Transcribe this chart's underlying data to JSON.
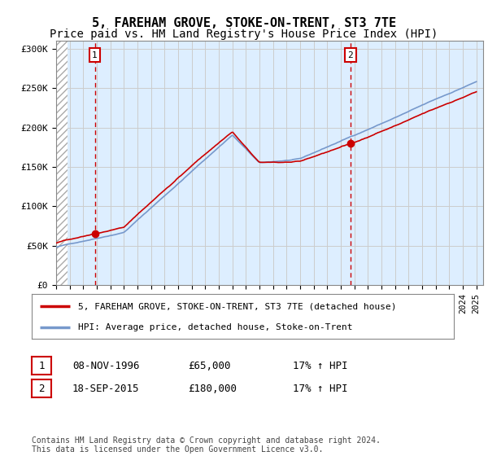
{
  "title": "5, FAREHAM GROVE, STOKE-ON-TRENT, ST3 7TE",
  "subtitle": "Price paid vs. HM Land Registry's House Price Index (HPI)",
  "ylim": [
    0,
    310000
  ],
  "yticks": [
    0,
    50000,
    100000,
    150000,
    200000,
    250000,
    300000
  ],
  "ytick_labels": [
    "£0",
    "£50K",
    "£100K",
    "£150K",
    "£200K",
    "£250K",
    "£300K"
  ],
  "transaction1_year": 1996.85,
  "transaction1_price": 65000,
  "transaction2_year": 2015.72,
  "transaction2_price": 180000,
  "red_line_color": "#cc0000",
  "blue_line_color": "#7799cc",
  "grid_color": "#cccccc",
  "bg_color": "#ddeeff",
  "legend_line1": "5, FAREHAM GROVE, STOKE-ON-TRENT, ST3 7TE (detached house)",
  "legend_line2": "HPI: Average price, detached house, Stoke-on-Trent",
  "table_row1": [
    "1",
    "08-NOV-1996",
    "£65,000",
    "17% ↑ HPI"
  ],
  "table_row2": [
    "2",
    "18-SEP-2015",
    "£180,000",
    "17% ↑ HPI"
  ],
  "footnote": "Contains HM Land Registry data © Crown copyright and database right 2024.\nThis data is licensed under the Open Government Licence v3.0.",
  "title_fontsize": 11,
  "subtitle_fontsize": 10,
  "tick_fontsize": 8
}
